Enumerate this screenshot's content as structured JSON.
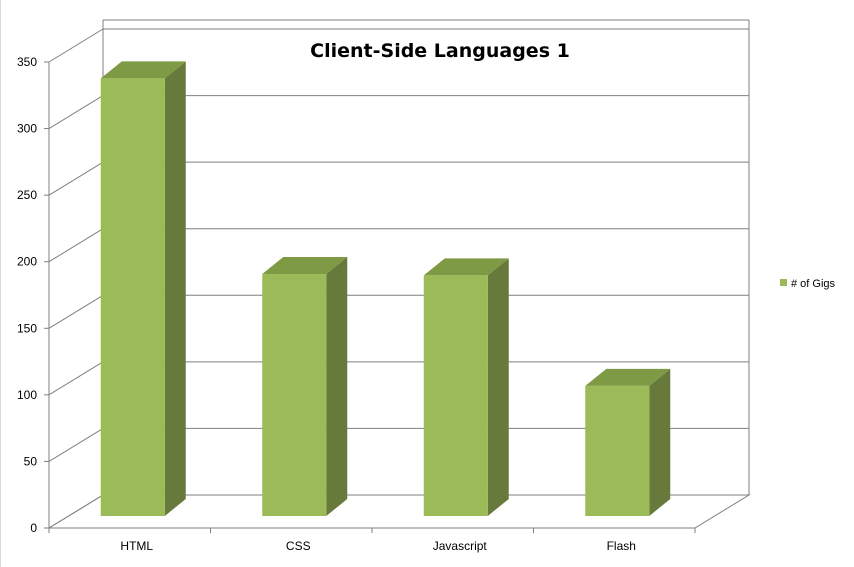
{
  "chart_data": {
    "type": "bar",
    "title": "Client-Side Languages 1",
    "categories": [
      "HTML",
      "CSS",
      "Javascript",
      "Flash"
    ],
    "series": [
      {
        "name": "# of Gigs",
        "values": [
          340,
          193,
          192,
          109
        ]
      }
    ],
    "ylim": [
      0,
      350
    ],
    "yticks": [
      0,
      50,
      100,
      150,
      200,
      250,
      300,
      350
    ],
    "xlabel": "",
    "ylabel": "",
    "grid": true,
    "legend": "right",
    "colors": {
      "bar_front": "#9bbb59",
      "bar_side": "#677a3b",
      "bar_top": "#7f9a45",
      "gridline": "#7f7f7f"
    }
  }
}
